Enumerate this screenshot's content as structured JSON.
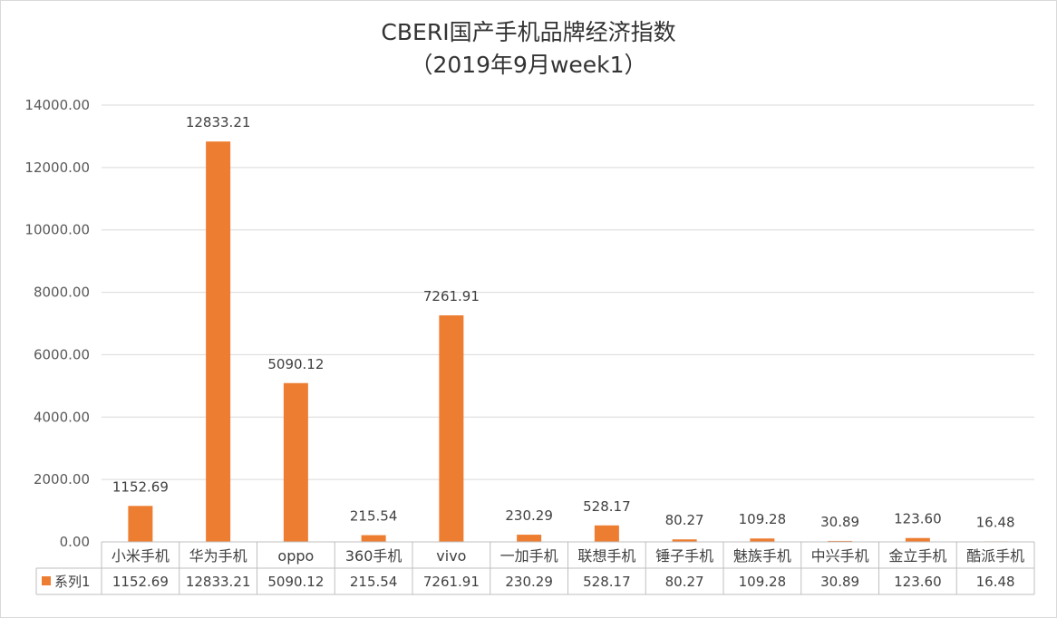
{
  "chart_data": {
    "type": "bar",
    "title": "CBERI国产手机品牌经济指数",
    "subtitle": "（2019年9月week1）",
    "categories": [
      "小米手机",
      "华为手机",
      "oppo",
      "360手机",
      "vivo",
      "一加手机",
      "联想手机",
      "锤子手机",
      "魅族手机",
      "中兴手机",
      "金立手机",
      "酷派手机"
    ],
    "series": [
      {
        "name": "系列1",
        "color": "#ED7D31",
        "values": [
          1152.69,
          12833.21,
          5090.12,
          215.54,
          7261.91,
          230.29,
          528.17,
          80.27,
          109.28,
          30.89,
          123.6,
          16.48
        ],
        "labels": [
          "1152.69",
          "12833.21",
          "5090.12",
          "215.54",
          "7261.91",
          "230.29",
          "528.17",
          "80.27",
          "109.28",
          "30.89",
          "123.60",
          "16.48"
        ]
      }
    ],
    "ylim": [
      0,
      14000
    ],
    "yticks": [
      "0.00",
      "2000.00",
      "4000.00",
      "6000.00",
      "8000.00",
      "10000.00",
      "12000.00",
      "14000.00"
    ],
    "grid": true,
    "legend": "data-table",
    "xlabel": "",
    "ylabel": ""
  }
}
